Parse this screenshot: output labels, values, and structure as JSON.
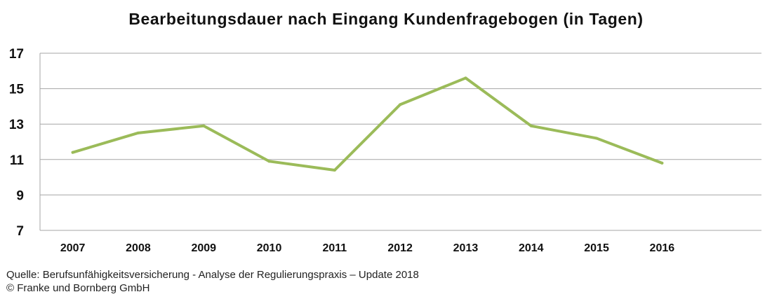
{
  "chart_data": {
    "type": "line",
    "title": "Bearbeitungsdauer nach Eingang Kundenfragebogen (in Tagen)",
    "xlabel": "",
    "ylabel": "",
    "categories": [
      "2007",
      "2008",
      "2009",
      "2010",
      "2011",
      "2012",
      "2013",
      "2014",
      "2015",
      "2016"
    ],
    "series": [
      {
        "name": "Bearbeitungsdauer",
        "values": [
          11.4,
          12.5,
          12.9,
          10.9,
          10.4,
          14.1,
          15.6,
          12.9,
          12.2,
          10.8
        ]
      }
    ],
    "yticks": [
      "7",
      "9",
      "11",
      "13",
      "15",
      "17"
    ],
    "ylim": [
      7,
      17
    ],
    "grid": true,
    "legend": "none"
  },
  "colors": {
    "line": "#9bbb59",
    "grid": "#a6a6a6",
    "text": "#111111"
  },
  "footer": {
    "source": "Quelle: Berufsunfähigkeitsversicherung - Analyse der Regulierungspraxis – Update 2018",
    "copyright": "© Franke und Bornberg GmbH"
  }
}
